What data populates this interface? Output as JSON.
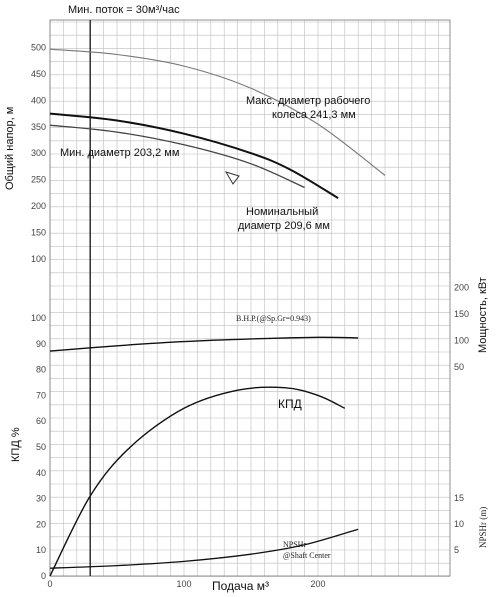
{
  "chart_data": {
    "type": "line",
    "top_note": "Мин. поток = 30м³/час",
    "xlabel": "Подача м³",
    "x_ticks": [
      "0",
      "100",
      "200"
    ],
    "xlim": [
      0,
      300
    ],
    "min_flow": 30,
    "head_panel": {
      "ylabel": "Общий напор, м",
      "y_ticks": [
        "100",
        "150",
        "200",
        "250",
        "300",
        "350",
        "400",
        "450",
        "500"
      ],
      "ylim": [
        100,
        520
      ],
      "series": [
        {
          "name": "Макс. диаметр рабочего колеса 241,3 мм",
          "x": [
            0,
            50,
            100,
            150,
            200,
            250
          ],
          "y": [
            497,
            487,
            465,
            423,
            355,
            258
          ]
        },
        {
          "name": "Номинальный диаметр 209,6 мм",
          "x": [
            0,
            50,
            100,
            150,
            180,
            215
          ],
          "y": [
            375,
            362,
            337,
            300,
            268,
            215
          ]
        },
        {
          "name": "Мин. диаметр 203,2 мм",
          "x": [
            0,
            50,
            100,
            150,
            190
          ],
          "y": [
            353,
            340,
            316,
            280,
            235
          ]
        }
      ],
      "labels": {
        "max_line1": "Макс. диаметр рабочего",
        "max_line2": "колеса 241,3 мм",
        "nom_line1": "Номинальный",
        "nom_line2": "диаметр 209,6 мм",
        "min": "Мин. диаметр 203,2 мм"
      }
    },
    "power_panel": {
      "ylabel": "Мощность, кВт",
      "y_ticks": [
        "50",
        "100",
        "150",
        "200"
      ],
      "ylim": [
        0,
        225
      ],
      "series": [
        {
          "name": "B.H.P.(@Sp.Gr=0.943)",
          "x": [
            0,
            50,
            100,
            150,
            200,
            230
          ],
          "y": [
            80,
            90,
            98,
            103,
            106,
            105
          ]
        }
      ]
    },
    "efficiency_panel": {
      "ylabel": "КПД %",
      "y_ticks": [
        "0",
        "10",
        "20",
        "30",
        "40",
        "50",
        "60",
        "70",
        "80",
        "90",
        "100"
      ],
      "ylim": [
        0,
        105
      ],
      "series": [
        {
          "name": "КПД",
          "x": [
            0,
            30,
            60,
            100,
            140,
            175,
            200,
            220
          ],
          "y": [
            0,
            31,
            50,
            65,
            72,
            73,
            70,
            65
          ]
        }
      ]
    },
    "npsh_panel": {
      "ylabel": "NPSHr (m)",
      "y_ticks": [
        "5",
        "10",
        "15"
      ],
      "ylim": [
        0,
        17
      ],
      "series": [
        {
          "name": "NPSHr @Shaft Center",
          "x": [
            0,
            50,
            100,
            150,
            190,
            230
          ],
          "y": [
            1.5,
            2.0,
            2.8,
            4.2,
            6.0,
            9.0
          ]
        }
      ],
      "label_line1": "NPSHr",
      "label_line2": "@Shaft Center"
    }
  }
}
